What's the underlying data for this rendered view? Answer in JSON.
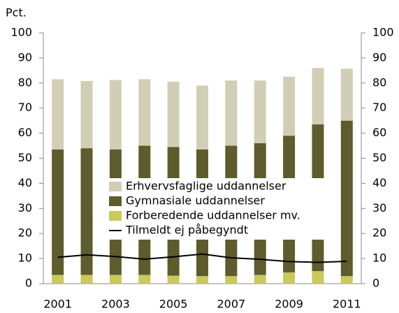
{
  "chart_data": {
    "type": "bar",
    "stacked": true,
    "ylabel": "Pct.",
    "categories": [
      "2001",
      null,
      "2003",
      null,
      "2005",
      null,
      "2007",
      null,
      "2009",
      null,
      "2011"
    ],
    "series": [
      {
        "name": "Erhvervsfaglige uddannelser",
        "color": "#d2ceb5",
        "values": [
          28,
          26.8,
          27.7,
          26.5,
          26,
          25.5,
          26,
          25,
          23.5,
          22.5,
          20.7
        ]
      },
      {
        "name": "Gymnasiale uddannelser",
        "color": "#5e5b2d",
        "values": [
          50,
          50.5,
          50,
          51.5,
          51.3,
          50.5,
          52,
          52.5,
          54.5,
          58.5,
          62
        ]
      },
      {
        "name": "Forberedende uddannelser mv.",
        "color": "#c9c95c",
        "values": [
          3.5,
          3.5,
          3.5,
          3.5,
          3.2,
          3,
          3,
          3.5,
          4.5,
          5,
          3
        ]
      },
      {
        "name": "Tilmeldt ej påbegyndt",
        "type": "line",
        "color": "#000000",
        "values": [
          10.5,
          11.5,
          10.8,
          9.8,
          10.7,
          11.8,
          10.3,
          9.7,
          8.8,
          8.5,
          8.9
        ]
      }
    ],
    "ylim": [
      0,
      100
    ],
    "yticks": [
      0,
      10,
      20,
      30,
      40,
      50,
      60,
      70,
      80,
      90,
      100
    ],
    "y2lim": [
      0,
      100
    ],
    "y2ticks": [
      0,
      10,
      20,
      30,
      40,
      50,
      60,
      70,
      80,
      90,
      100
    ],
    "legend": "center"
  }
}
